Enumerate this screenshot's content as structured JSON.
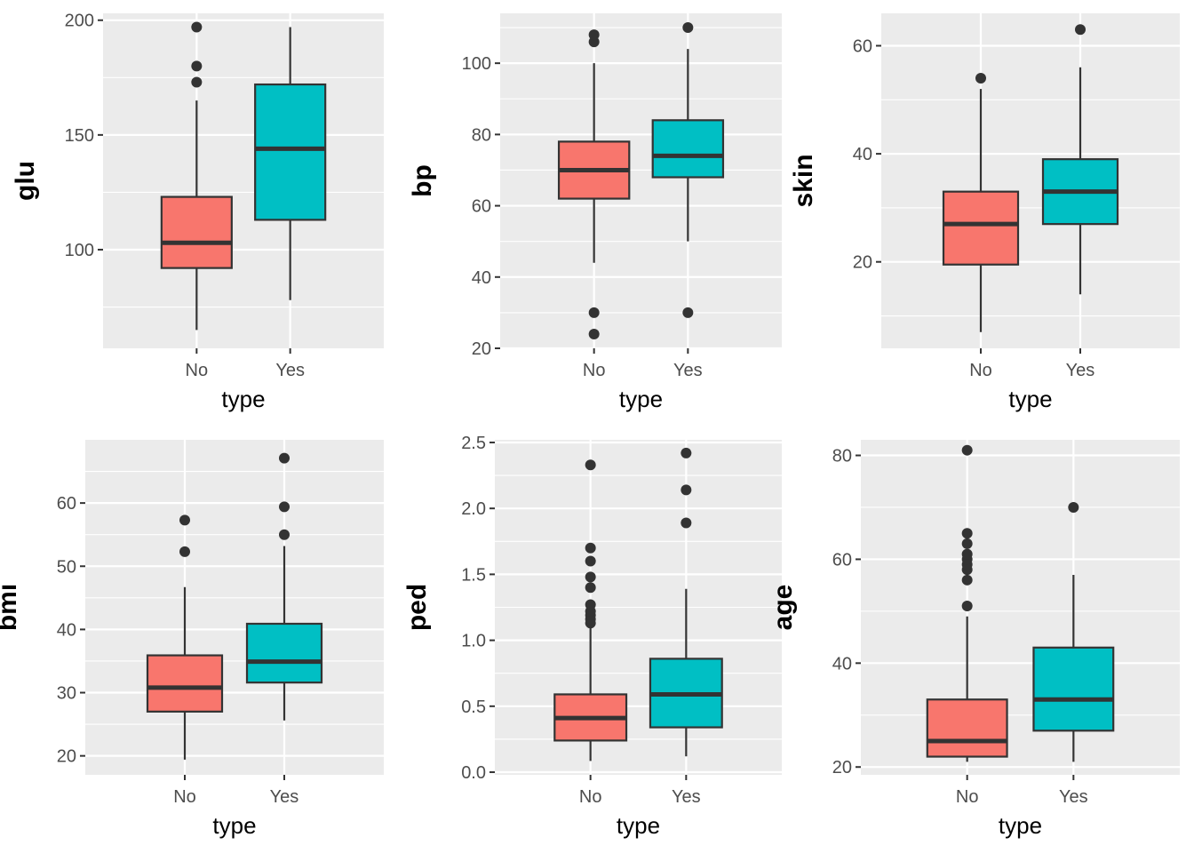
{
  "colors": {
    "No": "#F8766D",
    "Yes": "#00BFC4"
  },
  "chart_data": [
    {
      "type": "box",
      "xlabel": "type",
      "ylabel": "glu",
      "categories": [
        "No",
        "Yes"
      ],
      "ylim": [
        57,
        203
      ],
      "yticks": [
        100,
        150,
        200
      ],
      "yminor": [
        75,
        125,
        175
      ],
      "groups": [
        {
          "category": "No",
          "min": 65,
          "q1": 92,
          "median": 103,
          "q3": 123,
          "max": 165,
          "outliers": [
            173,
            180,
            197
          ]
        },
        {
          "category": "Yes",
          "min": 78,
          "q1": 113,
          "median": 144,
          "q3": 172,
          "max": 197,
          "outliers": []
        }
      ]
    },
    {
      "type": "box",
      "xlabel": "type",
      "ylabel": "bp",
      "categories": [
        "No",
        "Yes"
      ],
      "ylim": [
        20,
        114
      ],
      "yticks": [
        20,
        40,
        60,
        80,
        100
      ],
      "yminor": [
        30,
        50,
        70,
        90,
        110
      ],
      "groups": [
        {
          "category": "No",
          "min": 44,
          "q1": 62,
          "median": 70,
          "q3": 78,
          "max": 100,
          "outliers": [
            24,
            30,
            106,
            108
          ]
        },
        {
          "category": "Yes",
          "min": 50,
          "q1": 68,
          "median": 74,
          "q3": 84,
          "max": 104,
          "outliers": [
            30,
            110
          ]
        }
      ]
    },
    {
      "type": "box",
      "xlabel": "type",
      "ylabel": "skin",
      "categories": [
        "No",
        "Yes"
      ],
      "ylim": [
        4,
        66
      ],
      "yticks": [
        20,
        40,
        60
      ],
      "yminor": [
        10,
        30,
        50
      ],
      "groups": [
        {
          "category": "No",
          "min": 7,
          "q1": 19.5,
          "median": 27,
          "q3": 33,
          "max": 52,
          "outliers": [
            54
          ]
        },
        {
          "category": "Yes",
          "min": 14,
          "q1": 27,
          "median": 33,
          "q3": 39,
          "max": 56,
          "outliers": [
            63
          ]
        }
      ]
    },
    {
      "type": "box",
      "xlabel": "type",
      "ylabel": "bmi",
      "categories": [
        "No",
        "Yes"
      ],
      "ylim": [
        17,
        70
      ],
      "yticks": [
        20,
        30,
        40,
        50,
        60
      ],
      "yminor": [
        25,
        35,
        45,
        55,
        65
      ],
      "groups": [
        {
          "category": "No",
          "min": 19.4,
          "q1": 27,
          "median": 30.8,
          "q3": 35.9,
          "max": 46.7,
          "outliers": [
            52.3,
            57.3
          ]
        },
        {
          "category": "Yes",
          "min": 25.6,
          "q1": 31.6,
          "median": 34.9,
          "q3": 40.9,
          "max": 53.2,
          "outliers": [
            55,
            59.4,
            67.1
          ]
        }
      ]
    },
    {
      "type": "box",
      "xlabel": "type",
      "ylabel": "ped",
      "categories": [
        "No",
        "Yes"
      ],
      "ylim": [
        -0.02,
        2.52
      ],
      "yticks": [
        0.0,
        0.5,
        1.0,
        1.5,
        2.0,
        2.5
      ],
      "yticklabels": [
        "0.0",
        "0.5",
        "1.0",
        "1.5",
        "2.0",
        "2.5"
      ],
      "yminor": [
        0.25,
        0.75,
        1.25,
        1.75,
        2.25
      ],
      "groups": [
        {
          "category": "No",
          "min": 0.085,
          "q1": 0.24,
          "median": 0.41,
          "q3": 0.59,
          "max": 1.1,
          "outliers": [
            1.13,
            1.16,
            1.19,
            1.22,
            1.27,
            1.4,
            1.48,
            1.6,
            1.7,
            2.33
          ]
        },
        {
          "category": "Yes",
          "min": 0.12,
          "q1": 0.34,
          "median": 0.59,
          "q3": 0.86,
          "max": 1.39,
          "outliers": [
            1.89,
            2.14,
            2.42
          ]
        }
      ]
    },
    {
      "type": "box",
      "xlabel": "type",
      "ylabel": "age",
      "categories": [
        "No",
        "Yes"
      ],
      "ylim": [
        18.5,
        83
      ],
      "yticks": [
        20,
        40,
        60,
        80
      ],
      "yminor": [
        30,
        50,
        70
      ],
      "groups": [
        {
          "category": "No",
          "min": 21,
          "q1": 22,
          "median": 25,
          "q3": 33,
          "max": 49,
          "outliers": [
            51,
            56,
            58,
            59,
            60,
            61,
            63,
            65,
            81
          ]
        },
        {
          "category": "Yes",
          "min": 21,
          "q1": 27,
          "median": 33,
          "q3": 43,
          "max": 57,
          "outliers": [
            70
          ]
        }
      ]
    }
  ]
}
